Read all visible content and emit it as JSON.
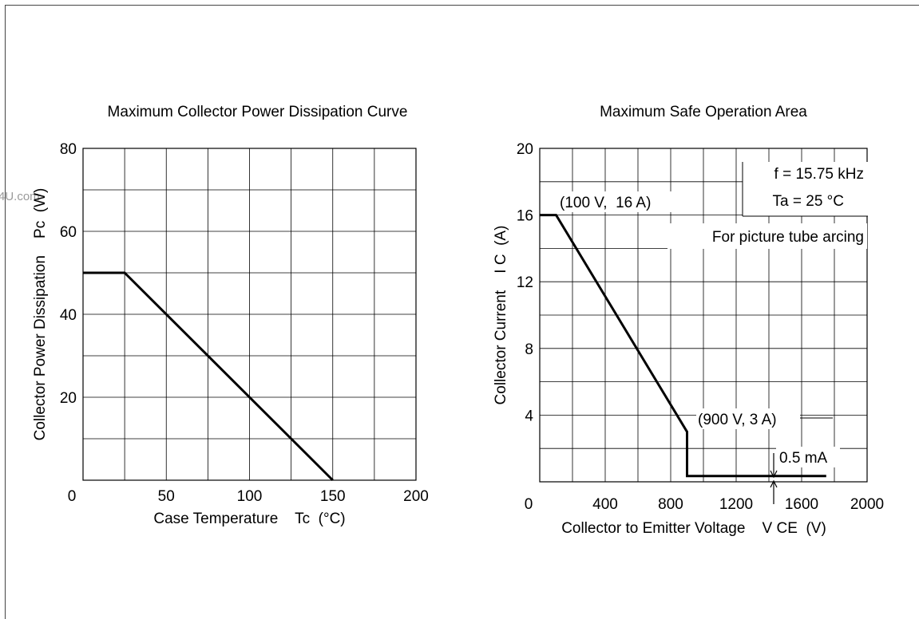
{
  "watermark": "4U.com",
  "chart_data": [
    {
      "type": "line",
      "title": "Maximum Collector Power Dissipation Curve",
      "xlabel": "Case Temperature    Tc  (°C)",
      "ylabel": "Collector Power Dissipation    Pc  (W)",
      "xlim": [
        0,
        200
      ],
      "ylim": [
        0,
        80
      ],
      "x_ticks": [
        "0",
        "50",
        "100",
        "150",
        "200"
      ],
      "y_ticks": [
        "20",
        "40",
        "60",
        "80"
      ],
      "grid": true,
      "series": [
        {
          "points": [
            [
              0,
              50
            ],
            [
              25,
              50
            ],
            [
              150,
              0
            ]
          ]
        }
      ]
    },
    {
      "type": "line",
      "title": "Maximum Safe Operation Area",
      "xlabel": "Collector to Emitter Voltage    V CE  (V)",
      "ylabel": "Collector Current    I C  (A)",
      "xlim": [
        0,
        2000
      ],
      "ylim": [
        0,
        20
      ],
      "x_ticks": [
        "0",
        "400",
        "800",
        "1200",
        "1600",
        "2000"
      ],
      "y_ticks": [
        "4",
        "8",
        "12",
        "16",
        "20"
      ],
      "grid": true,
      "series": [
        {
          "points": [
            [
              0,
              16
            ],
            [
              100,
              16
            ],
            [
              900,
              3
            ],
            [
              900,
              0.35
            ],
            [
              1750,
              0.35
            ]
          ]
        }
      ],
      "annotations": [
        {
          "text": "f = 15.75 kHz"
        },
        {
          "text": "Ta = 25 °C"
        },
        {
          "text": "For picture tube arcing"
        },
        {
          "text": "(100 V,  16 A)"
        },
        {
          "text": "(900 V, 3 A)"
        },
        {
          "text": "0.5 mA"
        }
      ]
    }
  ]
}
